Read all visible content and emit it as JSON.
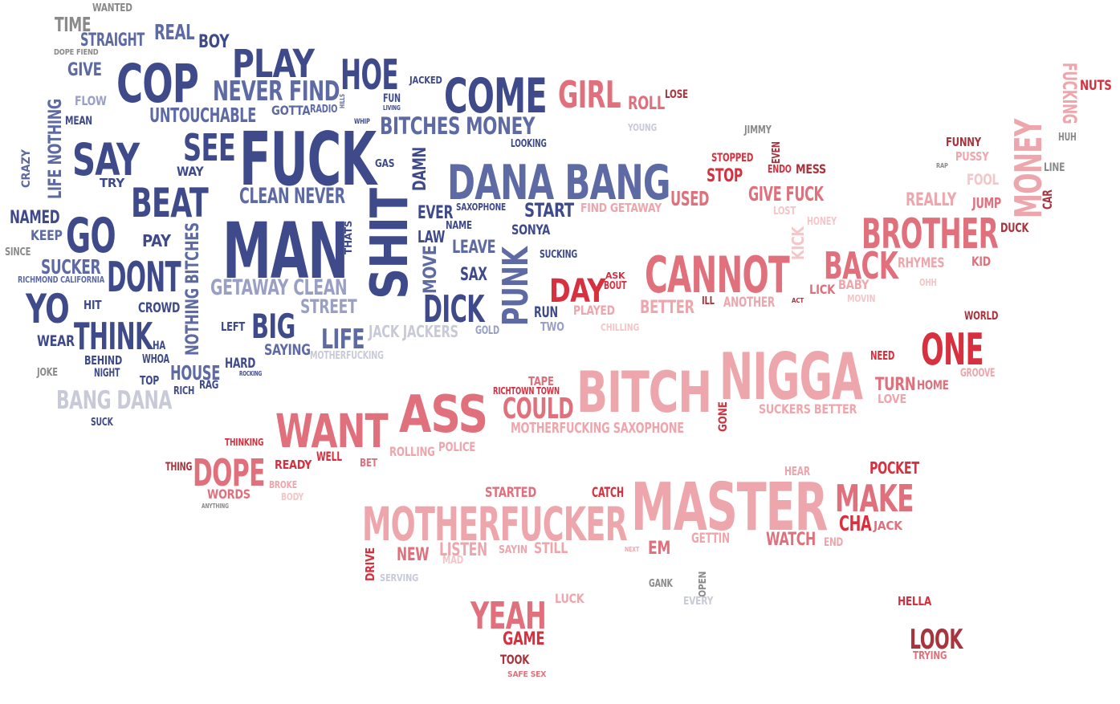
{
  "word_cloud": {
    "colors": {
      "navy": "#3f4a8a",
      "steel": "#5d6aa3",
      "lavender": "#9aa0c4",
      "silver": "#c8cad8",
      "gray": "#8a8a8a",
      "crimson": "#d7303f",
      "rose": "#e0707c",
      "pink": "#eea6ad",
      "blush": "#f3c6ca",
      "maroon": "#a8343e"
    },
    "words": [
      {
        "text": "WANTED",
        "color": "gray"
      },
      {
        "text": "TIME",
        "color": "gray"
      },
      {
        "text": "STRAIGHT",
        "color": "steel"
      },
      {
        "text": "REAL",
        "color": "steel"
      },
      {
        "text": "BOY",
        "color": "navy"
      },
      {
        "text": "DOPE FIEND",
        "color": "gray"
      },
      {
        "text": "PLAY",
        "color": "navy"
      },
      {
        "text": "HOE",
        "color": "navy"
      },
      {
        "text": "JACKED",
        "color": "navy"
      },
      {
        "text": "COME",
        "color": "navy"
      },
      {
        "text": "GIRL",
        "color": "rose"
      },
      {
        "text": "ROLL",
        "color": "rose"
      },
      {
        "text": "LOSE",
        "color": "maroon"
      },
      {
        "text": "FUCKING",
        "color": "pink"
      },
      {
        "text": "NUTS",
        "color": "crimson"
      },
      {
        "text": "GIVE",
        "color": "steel"
      },
      {
        "text": "COP",
        "color": "navy"
      },
      {
        "text": "NEVER FIND",
        "color": "steel"
      },
      {
        "text": "FLOW",
        "color": "lavender"
      },
      {
        "text": "UNTOUCHABLE",
        "color": "steel"
      },
      {
        "text": "GOTTA",
        "color": "steel"
      },
      {
        "text": "RADIO",
        "color": "steel"
      },
      {
        "text": "HILLS",
        "color": "steel"
      },
      {
        "text": "FUN",
        "color": "navy"
      },
      {
        "text": "LIVING",
        "color": "navy"
      },
      {
        "text": "MEAN",
        "color": "navy"
      },
      {
        "text": "LIFE NOTHING",
        "color": "steel"
      },
      {
        "text": "WHIP",
        "color": "navy"
      },
      {
        "text": "BITCHES MONEY",
        "color": "steel"
      },
      {
        "text": "YOUNG",
        "color": "silver"
      },
      {
        "text": "JIMMY",
        "color": "gray"
      },
      {
        "text": "HUH",
        "color": "gray"
      },
      {
        "text": "SAY",
        "color": "navy"
      },
      {
        "text": "SEE",
        "color": "navy"
      },
      {
        "text": "FUCK",
        "color": "navy"
      },
      {
        "text": "LOOKING",
        "color": "navy"
      },
      {
        "text": "FUNNY",
        "color": "maroon"
      },
      {
        "text": "MONEY",
        "color": "pink"
      },
      {
        "text": "CRAZY",
        "color": "steel"
      },
      {
        "text": "WAY",
        "color": "navy"
      },
      {
        "text": "GAS",
        "color": "navy"
      },
      {
        "text": "DAMN",
        "color": "navy"
      },
      {
        "text": "STOPPED",
        "color": "crimson"
      },
      {
        "text": "EVEN",
        "color": "maroon"
      },
      {
        "text": "PUSSY",
        "color": "pink"
      },
      {
        "text": "RAP",
        "color": "gray"
      },
      {
        "text": "LINE",
        "color": "gray"
      },
      {
        "text": "TRY",
        "color": "navy"
      },
      {
        "text": "DANA BANG",
        "color": "steel"
      },
      {
        "text": "STOP",
        "color": "crimson"
      },
      {
        "text": "ENDO",
        "color": "crimson"
      },
      {
        "text": "MESS",
        "color": "maroon"
      },
      {
        "text": "FOOL",
        "color": "blush"
      },
      {
        "text": "CAR",
        "color": "maroon"
      },
      {
        "text": "BEAT",
        "color": "navy"
      },
      {
        "text": "CLEAN NEVER",
        "color": "steel"
      },
      {
        "text": "USED",
        "color": "rose"
      },
      {
        "text": "GIVE FUCK",
        "color": "rose"
      },
      {
        "text": "REALLY",
        "color": "pink"
      },
      {
        "text": "JUMP",
        "color": "rose"
      },
      {
        "text": "NAMED",
        "color": "navy"
      },
      {
        "text": "GO",
        "color": "navy"
      },
      {
        "text": "SHIT",
        "color": "navy"
      },
      {
        "text": "EVER",
        "color": "navy"
      },
      {
        "text": "SAXOPHONE",
        "color": "navy"
      },
      {
        "text": "START",
        "color": "navy"
      },
      {
        "text": "FIND GETAWAY",
        "color": "pink"
      },
      {
        "text": "LOST",
        "color": "blush"
      },
      {
        "text": "HONEY",
        "color": "blush"
      },
      {
        "text": "KEEP",
        "color": "steel"
      },
      {
        "text": "MAN",
        "color": "navy"
      },
      {
        "text": "THATS",
        "color": "navy"
      },
      {
        "text": "NAME",
        "color": "navy"
      },
      {
        "text": "SONYA",
        "color": "navy"
      },
      {
        "text": "KICK",
        "color": "blush"
      },
      {
        "text": "BROTHER",
        "color": "rose"
      },
      {
        "text": "DUCK",
        "color": "maroon"
      },
      {
        "text": "PAY",
        "color": "navy"
      },
      {
        "text": "LAW",
        "color": "navy"
      },
      {
        "text": "SINCE",
        "color": "gray"
      },
      {
        "text": "NOTHING BITCHES",
        "color": "steel"
      },
      {
        "text": "LEAVE",
        "color": "steel"
      },
      {
        "text": "SUCKING",
        "color": "navy"
      },
      {
        "text": "SUCKER",
        "color": "steel"
      },
      {
        "text": "DONT",
        "color": "navy"
      },
      {
        "text": "MOVE",
        "color": "steel"
      },
      {
        "text": "PUNK",
        "color": "steel"
      },
      {
        "text": "CANNOT",
        "color": "rose"
      },
      {
        "text": "BACK",
        "color": "rose"
      },
      {
        "text": "RHYMES",
        "color": "pink"
      },
      {
        "text": "KID",
        "color": "rose"
      },
      {
        "text": "RICHMOND CALIFORNIA",
        "color": "steel"
      },
      {
        "text": "SAX",
        "color": "navy"
      },
      {
        "text": "ASK",
        "color": "crimson"
      },
      {
        "text": "BOUT",
        "color": "crimson"
      },
      {
        "text": "LICK",
        "color": "rose"
      },
      {
        "text": "BABY",
        "color": "pink"
      },
      {
        "text": "OHH",
        "color": "blush"
      },
      {
        "text": "YO",
        "color": "navy"
      },
      {
        "text": "GETAWAY CLEAN",
        "color": "lavender"
      },
      {
        "text": "DAY",
        "color": "crimson"
      },
      {
        "text": "MOVIN",
        "color": "blush"
      },
      {
        "text": "HIT",
        "color": "navy"
      },
      {
        "text": "CROWD",
        "color": "navy"
      },
      {
        "text": "STREET",
        "color": "lavender"
      },
      {
        "text": "DICK",
        "color": "navy"
      },
      {
        "text": "RUN",
        "color": "navy"
      },
      {
        "text": "PLAYED",
        "color": "pink"
      },
      {
        "text": "BETTER",
        "color": "pink"
      },
      {
        "text": "ILL",
        "color": "maroon"
      },
      {
        "text": "ANOTHER",
        "color": "pink"
      },
      {
        "text": "ACT",
        "color": "maroon"
      },
      {
        "text": "WORLD",
        "color": "maroon"
      },
      {
        "text": "BIG",
        "color": "navy"
      },
      {
        "text": "LEFT",
        "color": "navy"
      },
      {
        "text": "THINK",
        "color": "navy"
      },
      {
        "text": "WEAR",
        "color": "navy"
      },
      {
        "text": "JACK JACKERS",
        "color": "silver"
      },
      {
        "text": "GOLD",
        "color": "lavender"
      },
      {
        "text": "TWO",
        "color": "lavender"
      },
      {
        "text": "CHILLING",
        "color": "blush"
      },
      {
        "text": "LIFE",
        "color": "steel"
      },
      {
        "text": "ONE",
        "color": "crimson"
      },
      {
        "text": "HA",
        "color": "navy"
      },
      {
        "text": "SAYING",
        "color": "steel"
      },
      {
        "text": "MOTHERFUCKING",
        "color": "silver"
      },
      {
        "text": "BEHIND",
        "color": "navy"
      },
      {
        "text": "WHOA",
        "color": "navy"
      },
      {
        "text": "NIGGA",
        "color": "pink"
      },
      {
        "text": "NEED",
        "color": "crimson"
      },
      {
        "text": "JOKE",
        "color": "gray"
      },
      {
        "text": "NIGHT",
        "color": "navy"
      },
      {
        "text": "HARD",
        "color": "navy"
      },
      {
        "text": "ROCKING",
        "color": "navy"
      },
      {
        "text": "HOUSE",
        "color": "steel"
      },
      {
        "text": "GROOVE",
        "color": "pink"
      },
      {
        "text": "TOP",
        "color": "navy"
      },
      {
        "text": "RAG",
        "color": "navy"
      },
      {
        "text": "TAPE",
        "color": "rose"
      },
      {
        "text": "RICHTOWN TOWN",
        "color": "crimson"
      },
      {
        "text": "BITCH",
        "color": "pink"
      },
      {
        "text": "TURN",
        "color": "rose"
      },
      {
        "text": "HOME",
        "color": "rose"
      },
      {
        "text": "RICH",
        "color": "navy"
      },
      {
        "text": "BANG DANA",
        "color": "silver"
      },
      {
        "text": "LOVE",
        "color": "pink"
      },
      {
        "text": "ASS",
        "color": "rose"
      },
      {
        "text": "COULD",
        "color": "rose"
      },
      {
        "text": "GONE",
        "color": "crimson"
      },
      {
        "text": "SUCKERS BETTER",
        "color": "pink"
      },
      {
        "text": "SUCK",
        "color": "navy"
      },
      {
        "text": "WANT",
        "color": "rose"
      },
      {
        "text": "MOTHERFUCKING SAXOPHONE",
        "color": "pink"
      },
      {
        "text": "THINKING",
        "color": "crimson"
      },
      {
        "text": "ROLLING",
        "color": "pink"
      },
      {
        "text": "POLICE",
        "color": "pink"
      },
      {
        "text": "WELL",
        "color": "crimson"
      },
      {
        "text": "READY",
        "color": "crimson"
      },
      {
        "text": "BET",
        "color": "rose"
      },
      {
        "text": "HEAR",
        "color": "pink"
      },
      {
        "text": "POCKET",
        "color": "crimson"
      },
      {
        "text": "THING",
        "color": "maroon"
      },
      {
        "text": "DOPE",
        "color": "rose"
      },
      {
        "text": "BROKE",
        "color": "pink"
      },
      {
        "text": "WORDS",
        "color": "rose"
      },
      {
        "text": "BODY",
        "color": "blush"
      },
      {
        "text": "STARTED",
        "color": "rose"
      },
      {
        "text": "CATCH",
        "color": "crimson"
      },
      {
        "text": "MASTER",
        "color": "pink"
      },
      {
        "text": "MAKE",
        "color": "rose"
      },
      {
        "text": "ANYTHING",
        "color": "gray"
      },
      {
        "text": "MOTHERFUCKER",
        "color": "pink"
      },
      {
        "text": "CHA",
        "color": "crimson"
      },
      {
        "text": "JACK",
        "color": "rose"
      },
      {
        "text": "GETTIN",
        "color": "pink"
      },
      {
        "text": "WATCH",
        "color": "rose"
      },
      {
        "text": "END",
        "color": "pink"
      },
      {
        "text": "LISTEN",
        "color": "pink"
      },
      {
        "text": "SAYIN",
        "color": "pink"
      },
      {
        "text": "STILL",
        "color": "pink"
      },
      {
        "text": "NEXT",
        "color": "pink"
      },
      {
        "text": "EM",
        "color": "rose"
      },
      {
        "text": "NEW",
        "color": "rose"
      },
      {
        "text": "MAD",
        "color": "blush"
      },
      {
        "text": "DRIVE",
        "color": "crimson"
      },
      {
        "text": "SERVING",
        "color": "silver"
      },
      {
        "text": "GANK",
        "color": "gray"
      },
      {
        "text": "OPEN",
        "color": "gray"
      },
      {
        "text": "EVERY",
        "color": "silver"
      },
      {
        "text": "LUCK",
        "color": "pink"
      },
      {
        "text": "HELLA",
        "color": "crimson"
      },
      {
        "text": "YEAH",
        "color": "rose"
      },
      {
        "text": "GAME",
        "color": "crimson"
      },
      {
        "text": "LOOK",
        "color": "maroon"
      },
      {
        "text": "TRYING",
        "color": "rose"
      },
      {
        "text": "TOOK",
        "color": "maroon"
      },
      {
        "text": "SAFE SEX",
        "color": "rose"
      }
    ]
  }
}
